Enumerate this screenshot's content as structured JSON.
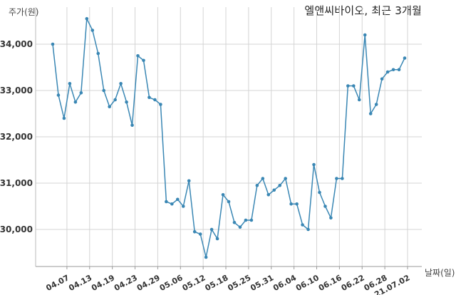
{
  "chart_data": {
    "type": "line",
    "title": "엘앤씨바이오, 최근 3개월",
    "ylabel": "주가(원)",
    "xlabel": "날짜(일)",
    "ylim": [
      29200,
      34800
    ],
    "yticks": [
      30000,
      31000,
      32000,
      33000,
      34000
    ],
    "ytick_labels": [
      "30,000",
      "31,000",
      "32,000",
      "33,000",
      "34,000"
    ],
    "x_tick_labels": [
      "04.07",
      "04.13",
      "04.19",
      "04.23",
      "04.29",
      "05.06",
      "05.12",
      "05.18",
      "05.25",
      "05.31",
      "06.04",
      "06.10",
      "06.16",
      "06.22",
      "06.28",
      "21.07.02"
    ],
    "x_tick_positions": [
      2.5,
      6.5,
      10.5,
      14.5,
      18.5,
      22.5,
      26.5,
      30.5,
      34.5,
      38.5,
      42.5,
      46.5,
      50.5,
      54.5,
      58.5,
      62.5
    ],
    "grid": true,
    "color": "#3a87b4",
    "series": [
      {
        "values": [
          34000,
          32900,
          32400,
          33150,
          32750,
          32950,
          34550,
          34300,
          33800,
          33000,
          32650,
          32800,
          33150,
          32750,
          32250,
          33750,
          33650,
          32850,
          32800,
          32700,
          30600,
          30550,
          30650,
          30500,
          31050,
          29950,
          29900,
          29400,
          30000,
          29800,
          30750,
          30600,
          30150,
          30050,
          30200,
          30200,
          30950,
          31100,
          30750,
          30850,
          30950,
          31100,
          30550,
          30550,
          30100,
          30000,
          31400,
          30800,
          30500,
          30250,
          31100,
          31100,
          33100,
          33100,
          32800,
          34200,
          32500,
          32700,
          33250,
          33400,
          33450,
          33450,
          33700
        ]
      }
    ]
  }
}
